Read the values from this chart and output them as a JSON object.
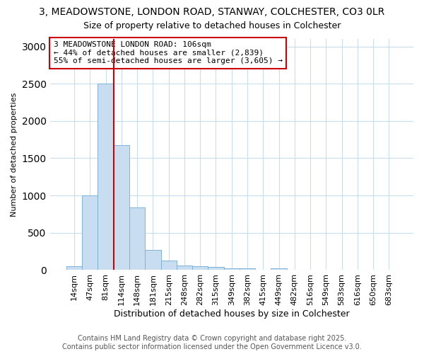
{
  "title1": "3, MEADOWSTONE, LONDON ROAD, STANWAY, COLCHESTER, CO3 0LR",
  "title2": "Size of property relative to detached houses in Colchester",
  "xlabel": "Distribution of detached houses by size in Colchester",
  "ylabel": "Number of detached properties",
  "categories": [
    "14sqm",
    "47sqm",
    "81sqm",
    "114sqm",
    "148sqm",
    "181sqm",
    "215sqm",
    "248sqm",
    "282sqm",
    "315sqm",
    "349sqm",
    "382sqm",
    "415sqm",
    "449sqm",
    "482sqm",
    "516sqm",
    "549sqm",
    "583sqm",
    "616sqm",
    "650sqm",
    "683sqm"
  ],
  "values": [
    50,
    1000,
    2500,
    1680,
    840,
    270,
    130,
    60,
    55,
    45,
    28,
    20,
    0,
    25,
    2,
    2,
    2,
    2,
    2,
    2,
    2
  ],
  "bar_color": "#c8ddf0",
  "bar_edge_color": "#7fb3d9",
  "vline_color": "#cc0000",
  "annotation_title": "3 MEADOWSTONE LONDON ROAD: 106sqm",
  "annotation_line2": "← 44% of detached houses are smaller (2,839)",
  "annotation_line3": "55% of semi-detached houses are larger (3,605) →",
  "ylim": [
    0,
    3100
  ],
  "yticks": [
    0,
    500,
    1000,
    1500,
    2000,
    2500,
    3000
  ],
  "footnote1": "Contains HM Land Registry data © Crown copyright and database right 2025.",
  "footnote2": "Contains public sector information licensed under the Open Government Licence v3.0.",
  "bg_color": "#ffffff",
  "plot_bg_color": "#ffffff",
  "grid_color": "#c8ddf0",
  "title1_fontsize": 10,
  "title2_fontsize": 9,
  "xlabel_fontsize": 9,
  "ylabel_fontsize": 8,
  "tick_fontsize": 8,
  "annot_fontsize": 8,
  "footnote_fontsize": 7
}
